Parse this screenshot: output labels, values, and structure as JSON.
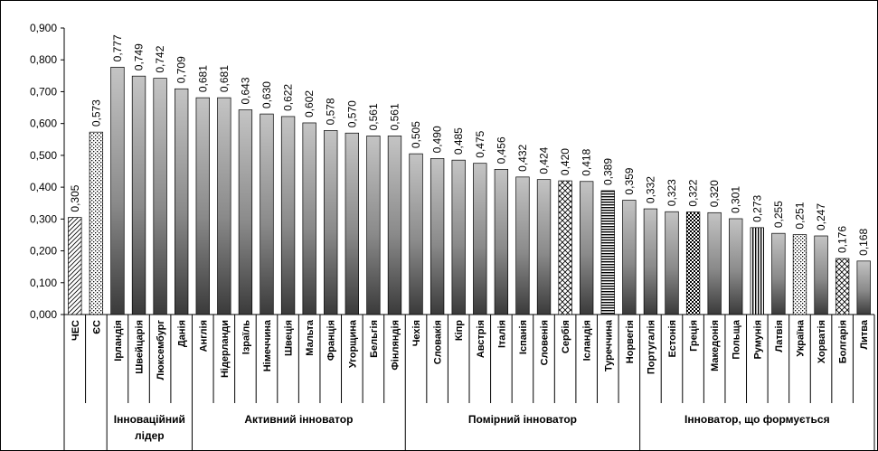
{
  "chart_data": {
    "type": "bar",
    "ylim": [
      0,
      0.9
    ],
    "yticks": [
      "0,000",
      "0,100",
      "0,200",
      "0,300",
      "0,400",
      "0,500",
      "0,600",
      "0,700",
      "0,800",
      "0,900"
    ],
    "grid": false,
    "categories": [
      "ЧЕС",
      "ЄС",
      "Ірландія",
      "Швейцарія",
      "Люксембург",
      "Данія",
      "Англія",
      "Нідерланди",
      "Ізраїль",
      "Німеччина",
      "Швеція",
      "Мальта",
      "Франція",
      "Угорщина",
      "Бельгія",
      "Фінляндія",
      "Чехія",
      "Словакія",
      "Кіпр",
      "Австрія",
      "Італія",
      "Іспанія",
      "Словенія",
      "Сербія",
      "Ісландія",
      "Туреччина",
      "Норвегія",
      "Португалія",
      "Естонія",
      "Греція",
      "Македонія",
      "Польща",
      "Румунія",
      "Латвія",
      "Україна",
      "Хорватія",
      "Болгарія",
      "Литва"
    ],
    "values": [
      0.305,
      0.573,
      0.777,
      0.749,
      0.742,
      0.709,
      0.681,
      0.681,
      0.643,
      0.63,
      0.622,
      0.602,
      0.578,
      0.57,
      0.561,
      0.561,
      0.505,
      0.49,
      0.485,
      0.475,
      0.456,
      0.432,
      0.424,
      0.42,
      0.418,
      0.389,
      0.359,
      0.332,
      0.323,
      0.322,
      0.32,
      0.301,
      0.273,
      0.255,
      0.251,
      0.247,
      0.176,
      0.168
    ],
    "value_labels": [
      "0,305",
      "0,573",
      "0,777",
      "0,749",
      "0,742",
      "0,709",
      "0,681",
      "0,681",
      "0,643",
      "0,630",
      "0,622",
      "0,602",
      "0,578",
      "0,570",
      "0,561",
      "0,561",
      "0,505",
      "0,490",
      "0,485",
      "0,475",
      "0,456",
      "0,432",
      "0,424",
      "0,420",
      "0,418",
      "0,389",
      "0,359",
      "0,332",
      "0,323",
      "0,322",
      "0,320",
      "0,301",
      "0,273",
      "0,255",
      "0,251",
      "0,247",
      "0,176",
      "0,168"
    ],
    "patterns": [
      "diag",
      "dots",
      "grad",
      "grad",
      "grad",
      "grad",
      "grad",
      "grad",
      "grad",
      "grad",
      "grad",
      "grad",
      "grad",
      "grad",
      "grad",
      "grad",
      "grad",
      "grad",
      "grad",
      "grad",
      "grad",
      "grad",
      "grad",
      "cross",
      "grad",
      "hstripe",
      "grad",
      "grad",
      "grad",
      "check",
      "grad",
      "grad",
      "vstripe",
      "grad",
      "dots",
      "grad",
      "cross",
      "grad"
    ],
    "groups": [
      {
        "label": "",
        "start": 0,
        "end": 1
      },
      {
        "label": "Інноваційний лідер",
        "start": 2,
        "end": 5
      },
      {
        "label": "Активний інноватор",
        "start": 6,
        "end": 15
      },
      {
        "label": "Помірний інноватор",
        "start": 16,
        "end": 26
      },
      {
        "label": "Інноватор, що формується",
        "start": 27,
        "end": 37
      }
    ]
  }
}
